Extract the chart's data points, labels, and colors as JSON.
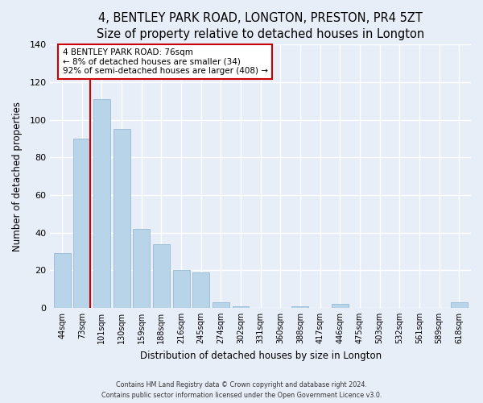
{
  "title": "4, BENTLEY PARK ROAD, LONGTON, PRESTON, PR4 5ZT",
  "subtitle": "Size of property relative to detached houses in Longton",
  "xlabel": "Distribution of detached houses by size in Longton",
  "ylabel": "Number of detached properties",
  "bar_labels": [
    "44sqm",
    "73sqm",
    "101sqm",
    "130sqm",
    "159sqm",
    "188sqm",
    "216sqm",
    "245sqm",
    "274sqm",
    "302sqm",
    "331sqm",
    "360sqm",
    "388sqm",
    "417sqm",
    "446sqm",
    "475sqm",
    "503sqm",
    "532sqm",
    "561sqm",
    "589sqm",
    "618sqm"
  ],
  "bar_values": [
    29,
    90,
    111,
    95,
    42,
    34,
    20,
    19,
    3,
    1,
    0,
    0,
    1,
    0,
    2,
    0,
    0,
    0,
    0,
    0,
    3
  ],
  "bar_color": "#b8d4e8",
  "bar_edge_color": "#a0c0d8",
  "ylim": [
    0,
    140
  ],
  "yticks": [
    0,
    20,
    40,
    60,
    80,
    100,
    120,
    140
  ],
  "property_line_color": "#cc0000",
  "annotation_title": "4 BENTLEY PARK ROAD: 76sqm",
  "annotation_line1": "← 8% of detached houses are smaller (34)",
  "annotation_line2": "92% of semi-detached houses are larger (408) →",
  "annotation_box_color": "#ffffff",
  "annotation_box_edge": "#cc0000",
  "footer_line1": "Contains HM Land Registry data © Crown copyright and database right 2024.",
  "footer_line2": "Contains public sector information licensed under the Open Government Licence v3.0.",
  "background_color": "#e8eef8",
  "grid_color": "#ffffff",
  "title_fontsize": 10.5,
  "subtitle_fontsize": 9.5
}
